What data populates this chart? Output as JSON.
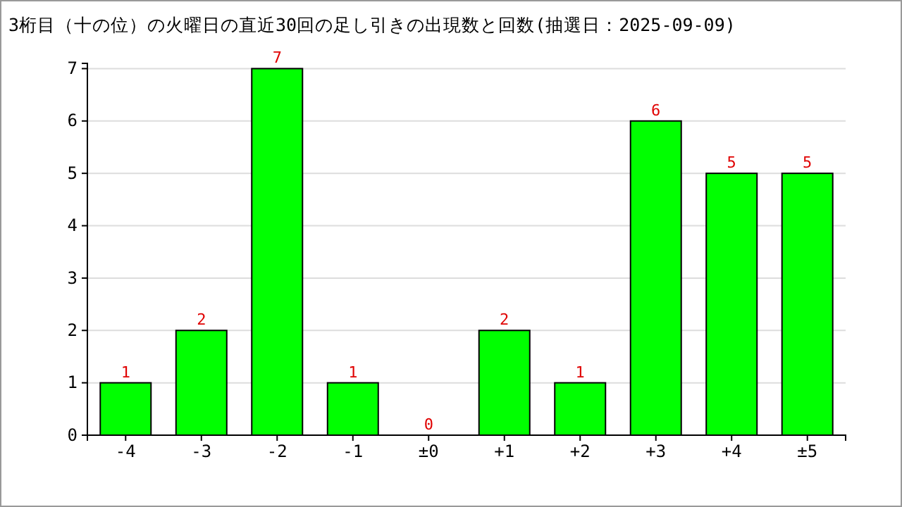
{
  "chart_data": {
    "type": "bar",
    "title": "3桁目（十の位）の火曜日の直近30回の足し引きの出現数と回数(抽選日：2025-09-09)",
    "categories": [
      "-4",
      "-3",
      "-2",
      "-1",
      "±0",
      "+1",
      "+2",
      "+3",
      "+4",
      "±5"
    ],
    "values": [
      1,
      2,
      7,
      1,
      0,
      2,
      1,
      6,
      5,
      5
    ],
    "color": "#00ff00",
    "ylim": [
      0,
      7.1
    ],
    "yticks": [
      0,
      1,
      2,
      3,
      4,
      5,
      6,
      7
    ],
    "grid": "y",
    "data_labels": true
  }
}
